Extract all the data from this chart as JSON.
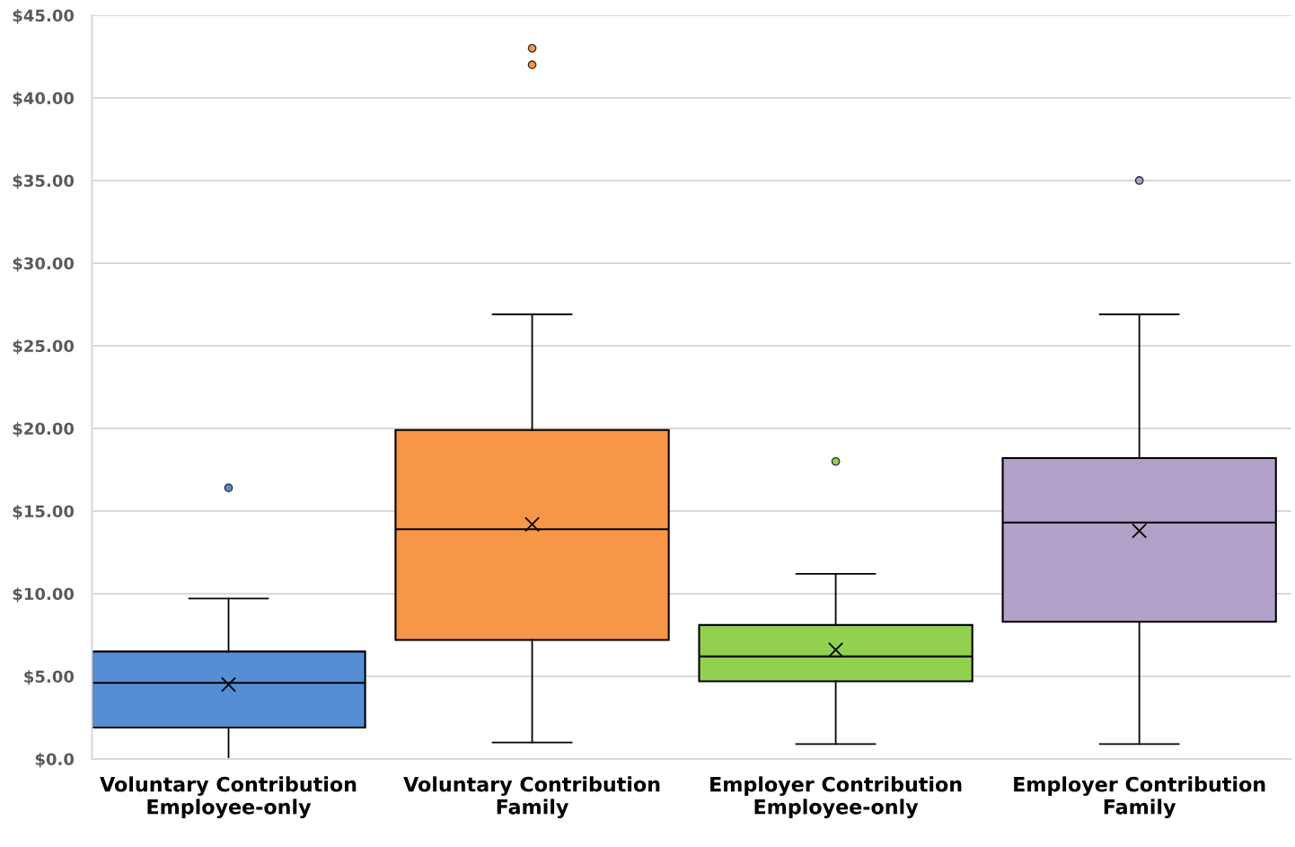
{
  "chart_data": {
    "type": "box",
    "categories": [
      "Voluntary Contribution\nEmployee-only",
      "Voluntary Contribution\nFamily",
      "Employer Contribution\nEmployee-only",
      "Employer Contribution\nFamily"
    ],
    "boxes": [
      {
        "low": 0,
        "q1": 1.9,
        "median": 4.6,
        "q3": 6.5,
        "high": 9.7,
        "mean": 4.5,
        "outliers": [
          16.4
        ]
      },
      {
        "low": 1.0,
        "q1": 7.2,
        "median": 13.9,
        "q3": 19.9,
        "high": 26.9,
        "mean": 14.2,
        "outliers": [
          43.0,
          42.0
        ]
      },
      {
        "low": 0.9,
        "q1": 4.7,
        "median": 6.2,
        "q3": 8.1,
        "high": 11.2,
        "mean": 6.6,
        "outliers": [
          18.0
        ]
      },
      {
        "low": 0.9,
        "q1": 8.3,
        "median": 14.3,
        "q3": 18.2,
        "high": 26.9,
        "mean": 13.8,
        "outliers": [
          35.0
        ]
      }
    ],
    "colors": [
      "#558ed5",
      "#f79646",
      "#92d050",
      "#b1a0c7"
    ],
    "ylim": [
      0,
      45
    ],
    "yticks": [
      {
        "value": 0,
        "label": "$0.0"
      },
      {
        "value": 5,
        "label": "$5.00"
      },
      {
        "value": 10,
        "label": "$10.00"
      },
      {
        "value": 15,
        "label": "$15.00"
      },
      {
        "value": 20,
        "label": "$20.00"
      },
      {
        "value": 25,
        "label": "$25.00"
      },
      {
        "value": 30,
        "label": "$30.00"
      },
      {
        "value": 35,
        "label": "$35.00"
      },
      {
        "value": 40,
        "label": "$40.00"
      },
      {
        "value": 45,
        "label": "$45.00"
      }
    ],
    "grid": "y"
  }
}
